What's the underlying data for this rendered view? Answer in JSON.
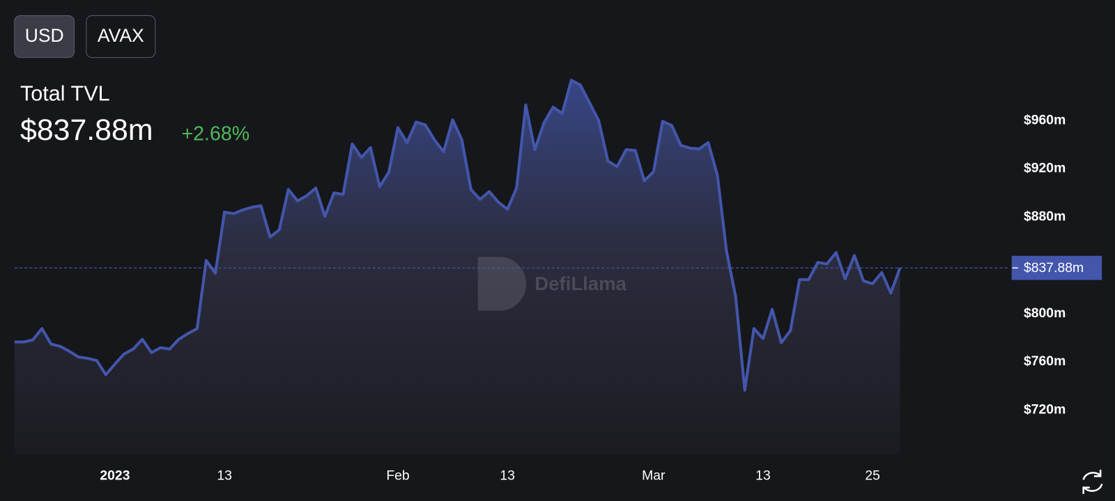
{
  "buttons": [
    "USD",
    "AVAX"
  ],
  "watermark": "DefiLlama",
  "chart_data": {
    "type": "area",
    "title": "Total TVL",
    "current": {
      "value": 837.88,
      "label": "$837.88m"
    },
    "change": "+2.68%",
    "color": "#4356ab",
    "x": [
      -11,
      -10,
      -9,
      -8,
      -7,
      -6,
      -5,
      -4,
      -3,
      -2,
      -1,
      0,
      1,
      2,
      3,
      4,
      5,
      6,
      7,
      8,
      9,
      10,
      11,
      12,
      13,
      14,
      15,
      16,
      17,
      18,
      19,
      20,
      21,
      22,
      23,
      24,
      25,
      26,
      27,
      28,
      29,
      30,
      31,
      32,
      33,
      34,
      35,
      36,
      37,
      38,
      39,
      40,
      41,
      42,
      43,
      44,
      45,
      46,
      47,
      48,
      49,
      50,
      51,
      52,
      53,
      54,
      55,
      56,
      57,
      58,
      59,
      60,
      61,
      62,
      63,
      64,
      65,
      66,
      67,
      68,
      69,
      70,
      71,
      72,
      73,
      74,
      75,
      76,
      77,
      78,
      79,
      80,
      81,
      82,
      83,
      84,
      85,
      86
    ],
    "values": [
      776.5,
      776.5,
      778.2,
      787.6,
      774.7,
      772.9,
      768.8,
      764.1,
      762.9,
      761.2,
      749.4,
      758.2,
      766.5,
      770.6,
      778.8,
      767.6,
      771.8,
      770.6,
      778.8,
      783.5,
      787.6,
      844.1,
      833.5,
      884.1,
      882.9,
      885.9,
      888.2,
      889.4,
      863.5,
      869.4,
      902.9,
      893.5,
      897.6,
      904.1,
      880.6,
      900,
      898.8,
      940.6,
      929.4,
      937.6,
      905.3,
      917.1,
      954.1,
      941.8,
      958.8,
      956.5,
      944.1,
      934.1,
      960.6,
      944.1,
      902.9,
      894.7,
      901.2,
      892.4,
      886.5,
      904.1,
      972.9,
      935.9,
      958.2,
      971.2,
      965.9,
      993.5,
      989.4,
      974.7,
      960,
      926.5,
      921.8,
      935.9,
      935.3,
      910,
      917.6,
      959.4,
      955.9,
      939.4,
      937.1,
      936.5,
      941.8,
      914.7,
      851.8,
      814.1,
      736.5,
      787.6,
      779.4,
      803.5,
      775.9,
      785.9,
      828.2,
      828.2,
      842.4,
      841.2,
      850.6,
      828.8,
      848.2,
      827.1,
      824.7,
      834.1,
      817.1,
      837.88
    ],
    "xlim": [
      -11,
      98
    ],
    "xticks": [
      {
        "value": 0,
        "label": "2023"
      },
      {
        "value": 12,
        "label": "13"
      },
      {
        "value": 31,
        "label": "Feb"
      },
      {
        "value": 43,
        "label": "13"
      },
      {
        "value": 59,
        "label": "Mar"
      },
      {
        "value": 71,
        "label": "13"
      },
      {
        "value": 83,
        "label": "25"
      }
    ],
    "ylim": [
      683.5,
      1007
    ],
    "yticks": [
      {
        "value": 720,
        "label": "$720m"
      },
      {
        "value": 760,
        "label": "$760m"
      },
      {
        "value": 800,
        "label": "$800m"
      },
      {
        "value": 880,
        "label": "$880m"
      },
      {
        "value": 920,
        "label": "$920m"
      },
      {
        "value": 960,
        "label": "$960m"
      }
    ]
  }
}
